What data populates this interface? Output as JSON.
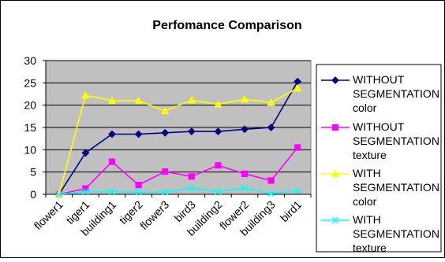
{
  "chart_data": {
    "type": "line",
    "title": "Perfomance Comparison",
    "xlabel": "",
    "ylabel": "",
    "categories": [
      "flower1",
      "tiger1",
      "building1",
      "tiger2",
      "flower3",
      "bird3",
      "building2",
      "flower2",
      "building3",
      "bird1"
    ],
    "ylim": [
      0,
      30
    ],
    "yticks": [
      0,
      5,
      10,
      15,
      20,
      25,
      30
    ],
    "grid": true,
    "legend_position": "right",
    "series": [
      {
        "name_lines": [
          "WITHOUT",
          "SEGMENTATION",
          "color"
        ],
        "color": "#000080",
        "marker": "diamond",
        "values": [
          0,
          9.3,
          13.5,
          13.5,
          13.8,
          14.1,
          14.1,
          14.6,
          15.0,
          25.3
        ]
      },
      {
        "name_lines": [
          "WITHOUT",
          "SEGMENTATION",
          "texture"
        ],
        "color": "#FF00FF",
        "marker": "square",
        "values": [
          0,
          1.3,
          7.3,
          2.1,
          5.1,
          4.0,
          6.5,
          4.6,
          3.1,
          10.5
        ]
      },
      {
        "name_lines": [
          "WITH",
          "SEGMENTATION",
          "color"
        ],
        "color": "#FFFF00",
        "marker": "triangle",
        "values": [
          0,
          22.2,
          21.0,
          21.0,
          18.7,
          21.1,
          20.2,
          21.3,
          20.6,
          23.8
        ]
      },
      {
        "name_lines": [
          "WITH",
          "SEGMENTATION",
          "texture"
        ],
        "color": "#00FFFF",
        "marker": "x",
        "values": [
          0,
          0.6,
          0.6,
          0.5,
          0.5,
          1.4,
          0.6,
          1.4,
          0.2,
          0.8
        ]
      }
    ]
  }
}
